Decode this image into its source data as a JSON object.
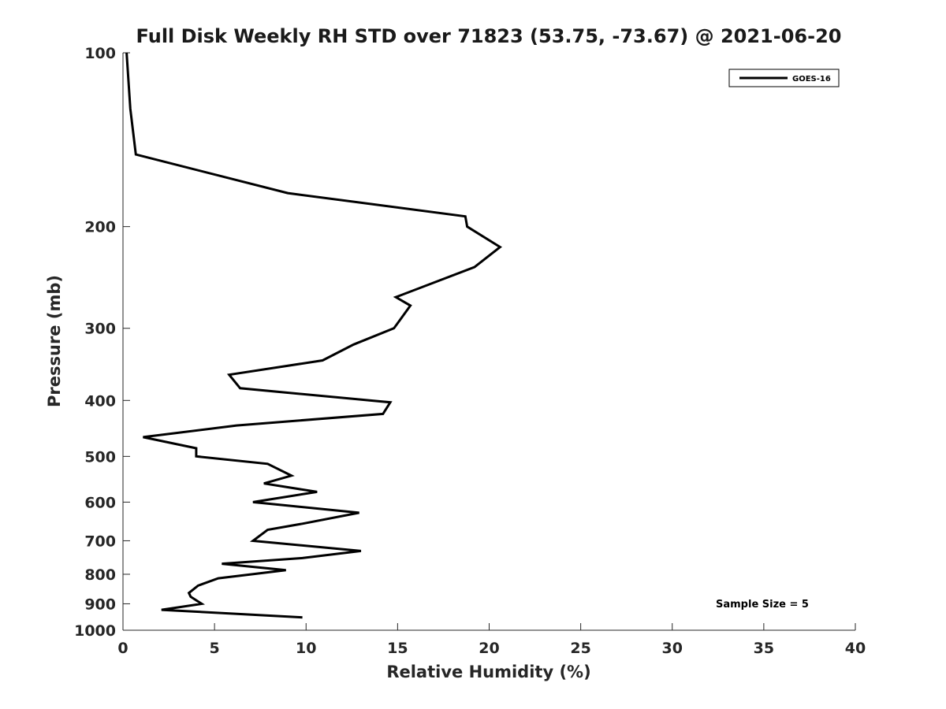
{
  "chart_data": {
    "type": "line",
    "title": "Full Disk Weekly RH STD over 71823 (53.75, -73.67) @ 2021-06-20",
    "xlabel": "Relative Humidity (%)",
    "ylabel": "Pressure (mb)",
    "xlim": [
      0,
      40
    ],
    "ylim": [
      100,
      1000
    ],
    "y_scale": "log",
    "y_reversed": true,
    "x_ticks": [
      0,
      5,
      10,
      15,
      20,
      25,
      30,
      35,
      40
    ],
    "y_ticks": [
      100,
      200,
      300,
      400,
      500,
      600,
      700,
      800,
      900,
      1000
    ],
    "grid": false,
    "legend_position": "top-right",
    "series": [
      {
        "name": "GOES-16",
        "color": "#000000",
        "points": [
          [
            0.2,
            100
          ],
          [
            0.4,
            125
          ],
          [
            0.7,
            150
          ],
          [
            9.0,
            175
          ],
          [
            18.7,
            192
          ],
          [
            18.8,
            200
          ],
          [
            20.6,
            217
          ],
          [
            19.2,
            235
          ],
          [
            14.9,
            265
          ],
          [
            15.7,
            274
          ],
          [
            14.8,
            300
          ],
          [
            12.6,
            320
          ],
          [
            10.9,
            341
          ],
          [
            5.8,
            361
          ],
          [
            6.4,
            381
          ],
          [
            14.6,
            403
          ],
          [
            14.2,
            422
          ],
          [
            6.2,
            442
          ],
          [
            1.1,
            463
          ],
          [
            4.0,
            484
          ],
          [
            4.0,
            500
          ],
          [
            7.9,
            515
          ],
          [
            9.2,
            540
          ],
          [
            7.7,
            557
          ],
          [
            10.6,
            576
          ],
          [
            7.1,
            600
          ],
          [
            12.9,
            626
          ],
          [
            9.8,
            654
          ],
          [
            7.9,
            670
          ],
          [
            7.1,
            700
          ],
          [
            13.0,
            729
          ],
          [
            9.8,
            750
          ],
          [
            5.4,
            767
          ],
          [
            8.9,
            787
          ],
          [
            5.2,
            813
          ],
          [
            4.1,
            837
          ],
          [
            3.6,
            862
          ],
          [
            3.7,
            875
          ],
          [
            4.3,
            900
          ],
          [
            2.1,
            922
          ],
          [
            9.8,
            950
          ]
        ]
      }
    ],
    "legend": {
      "label": "GOES-16"
    },
    "annotation": "Sample Size = 5"
  }
}
